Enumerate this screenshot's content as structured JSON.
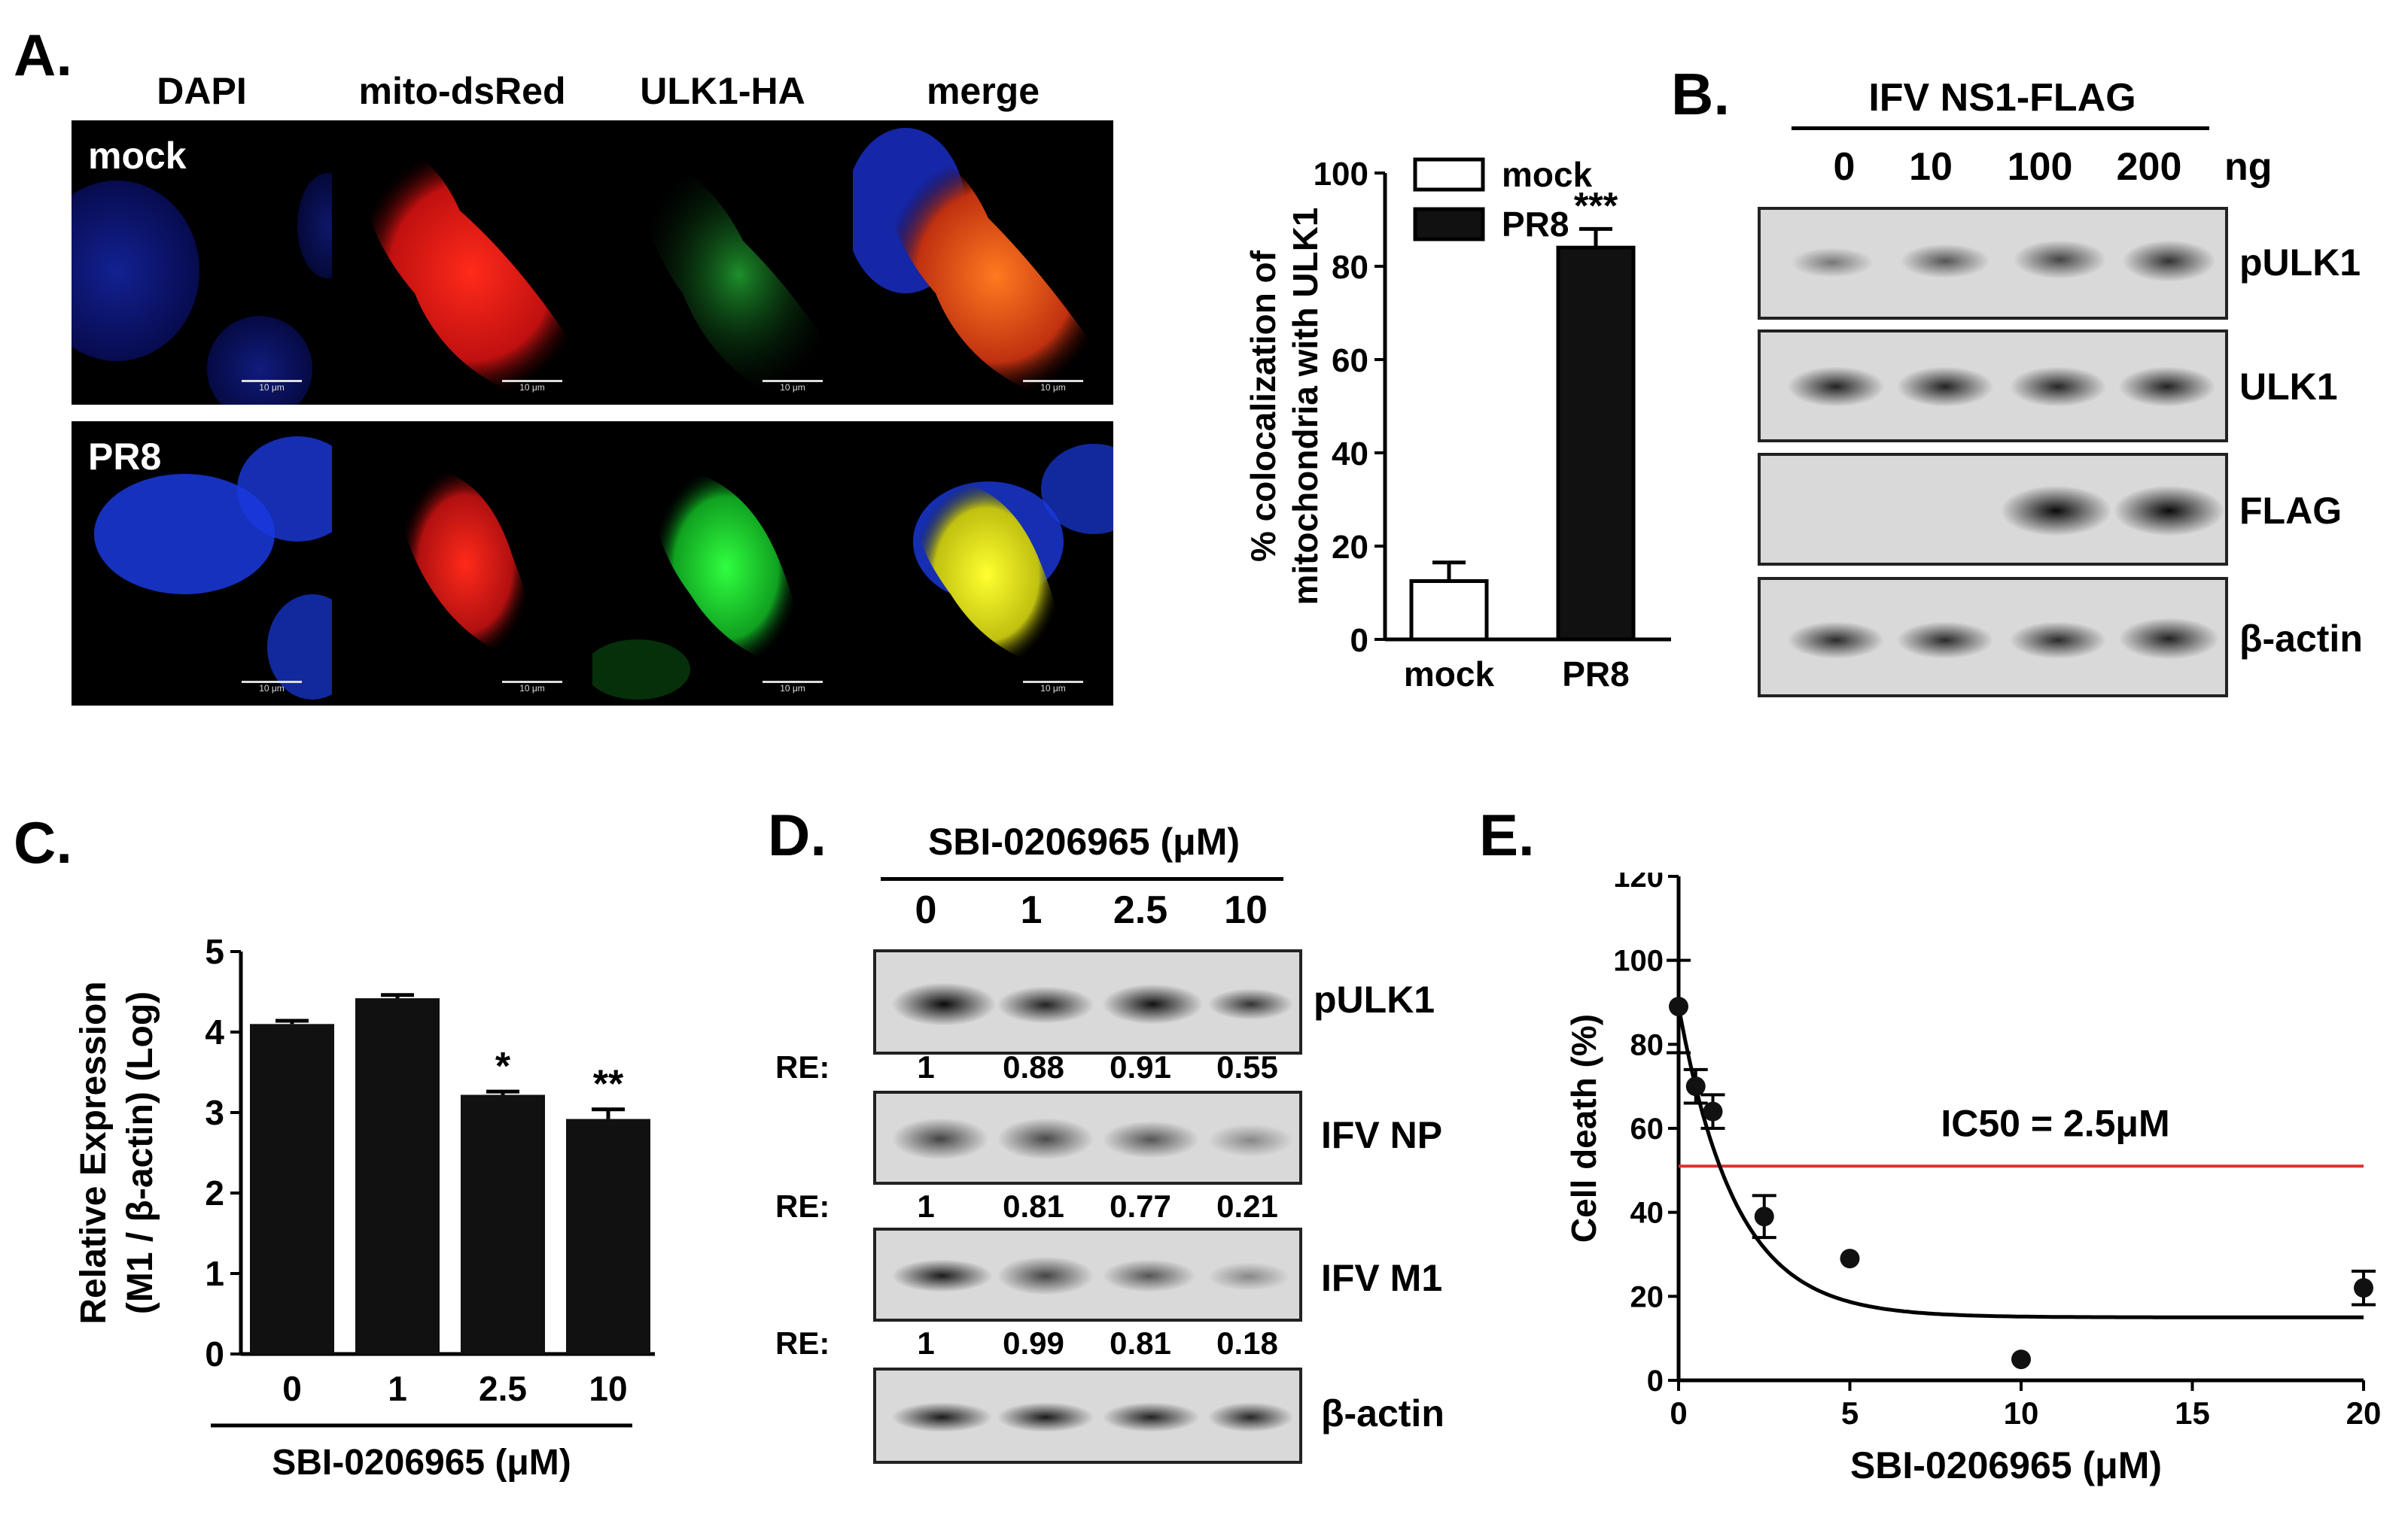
{
  "panels": {
    "A": {
      "label": "A.",
      "columns": [
        "DAPI",
        "mito-dsRed",
        "ULK1-HA",
        "merge"
      ],
      "rows": [
        "mock",
        "PR8"
      ],
      "scale_bar": "10 μm"
    },
    "B": {
      "label": "B.",
      "header": "IFV NS1-FLAG",
      "lanes": [
        "0",
        "10",
        "100",
        "200"
      ],
      "unit": "ng",
      "blots": [
        "pULK1",
        "ULK1",
        "FLAG",
        "β-actin"
      ]
    },
    "C": {
      "label": "C."
    },
    "D": {
      "label": "D.",
      "header": "SBI-0206965 (μM)",
      "lanes": [
        "0",
        "1",
        "2.5",
        "10"
      ],
      "blots": [
        {
          "name": "pULK1",
          "re": [
            "1",
            "0.88",
            "0.91",
            "0.55"
          ]
        },
        {
          "name": "IFV NP",
          "re": [
            "1",
            "0.81",
            "0.77",
            "0.21"
          ]
        },
        {
          "name": "IFV M1",
          "re": [
            "1",
            "0.99",
            "0.81",
            "0.18"
          ]
        },
        {
          "name": "β-actin"
        }
      ],
      "re_label": "RE:"
    },
    "E": {
      "label": "E.",
      "ic50_text": "IC50 = 2.5μM"
    }
  },
  "chart_data": [
    {
      "panel": "A",
      "type": "bar",
      "categories": [
        "mock",
        "PR8"
      ],
      "values": [
        12.5,
        84
      ],
      "errors": [
        4,
        4
      ],
      "legend": [
        "mock",
        "PR8"
      ],
      "legend_placement": "top-left",
      "ylabel": "% colocalization of mitochondria with ULK1",
      "ylim": [
        0,
        100
      ],
      "yticks": [
        0,
        20,
        40,
        60,
        80,
        100
      ],
      "annotations": [
        {
          "category": "PR8",
          "text": "***"
        }
      ],
      "colors": [
        "#ffffff",
        "#111111"
      ]
    },
    {
      "panel": "C",
      "type": "bar",
      "categories": [
        "0",
        "1",
        "2.5",
        "10"
      ],
      "values": [
        4.1,
        4.42,
        3.22,
        2.92
      ],
      "errors": [
        0.04,
        0.04,
        0.04,
        0.12
      ],
      "ylabel": "Relative Expression (M1 / β-actin) (Log)",
      "xlabel": "SBI-0206965 (μM)",
      "ylim": [
        0,
        5
      ],
      "yticks": [
        0,
        1,
        2,
        3,
        4,
        5
      ],
      "annotations": [
        {
          "category": "2.5",
          "text": "*"
        },
        {
          "category": "10",
          "text": "**"
        }
      ]
    },
    {
      "panel": "E",
      "type": "scatter",
      "points": [
        {
          "x": 0,
          "y": 89,
          "err": 11
        },
        {
          "x": 0.5,
          "y": 70,
          "err": 4
        },
        {
          "x": 1,
          "y": 64,
          "err": 4
        },
        {
          "x": 2.5,
          "y": 39,
          "err": 5
        },
        {
          "x": 5,
          "y": 29,
          "err": 0
        },
        {
          "x": 10,
          "y": 5,
          "err": 0
        },
        {
          "x": 20,
          "y": 22,
          "err": 4
        }
      ],
      "fit_curve": {
        "bottom": 15,
        "top": 89,
        "rate": 0.6
      },
      "threshold_y": 51,
      "xlabel": "SBI-0206965 (μM)",
      "ylabel": "Cell death (%)",
      "xlim": [
        0,
        20
      ],
      "ylim": [
        0,
        120
      ],
      "xticks": [
        0,
        5,
        10,
        15,
        20
      ],
      "yticks": [
        0,
        20,
        40,
        60,
        80,
        100,
        120
      ],
      "annotation": "IC50 = 2.5μM",
      "threshold_color": "#e03030"
    }
  ]
}
